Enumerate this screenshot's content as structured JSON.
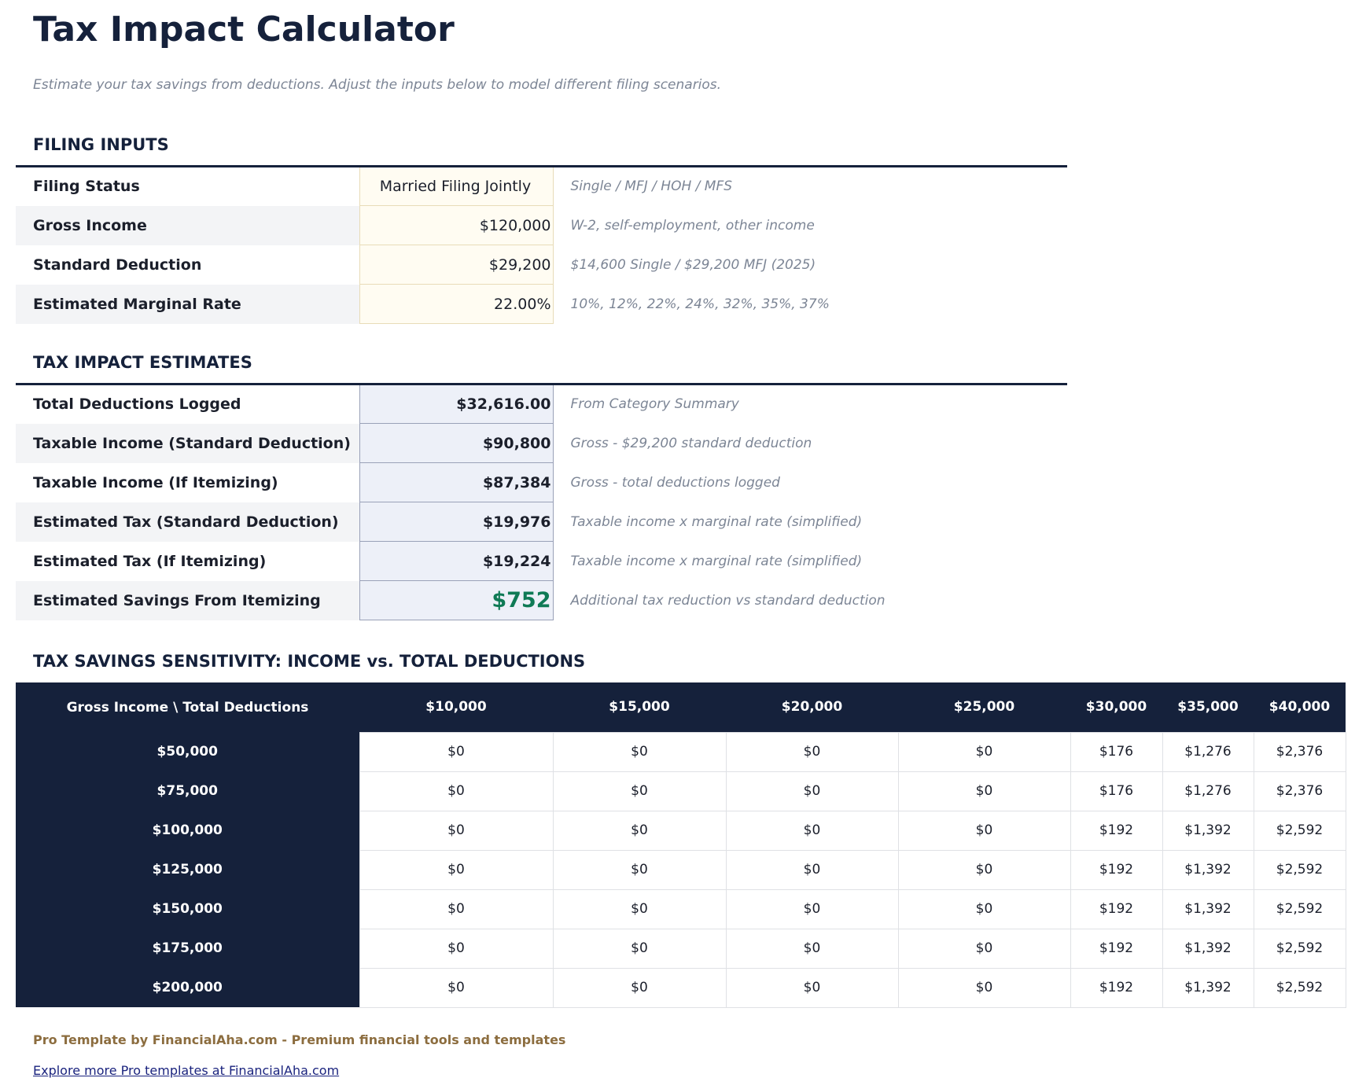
{
  "header": {
    "title": "Tax Impact Calculator",
    "subtitle": "Estimate your tax savings from deductions. Adjust the inputs below to model different filing scenarios."
  },
  "filing_inputs": {
    "title": "FILING INPUTS",
    "rows": [
      [
        "Filing Status",
        "Married Filing Jointly",
        "Single / MFJ / HOH / MFS"
      ],
      [
        "Gross Income",
        "$120,000",
        "W-2, self-employment, other income"
      ],
      [
        "Standard Deduction",
        "$29,200",
        "$14,600 Single / $29,200 MFJ (2025)"
      ],
      [
        "Estimated Marginal Rate",
        "22.00%",
        "10%, 12%, 22%, 24%, 32%, 35%, 37%"
      ]
    ]
  },
  "estimates": {
    "title": "TAX IMPACT ESTIMATES",
    "rows": [
      [
        "Total Deductions Logged",
        "$32,616.00",
        "From Category Summary"
      ],
      [
        "Taxable Income (Standard Deduction)",
        "$90,800",
        "Gross - $29,200 standard deduction"
      ],
      [
        "Taxable Income (If Itemizing)",
        "$87,384",
        "Gross - total deductions logged"
      ],
      [
        "Estimated Tax (Standard Deduction)",
        "$19,976",
        "Taxable income x marginal rate (simplified)"
      ],
      [
        "Estimated Tax (If Itemizing)",
        "$19,224",
        "Taxable income x marginal rate (simplified)"
      ],
      [
        "Estimated Savings From Itemizing",
        "$752",
        "Additional tax reduction vs standard deduction"
      ]
    ]
  },
  "sensitivity": {
    "title": "TAX SAVINGS SENSITIVITY: INCOME vs. TOTAL DEDUCTIONS",
    "header": [
      "Gross Income \\ Total Deductions",
      "$10,000",
      "$15,000",
      "$20,000",
      "$25,000",
      "$30,000",
      "$35,000",
      "$40,000"
    ],
    "rows": [
      [
        "$50,000",
        "$0",
        "$0",
        "$0",
        "$0",
        "$176",
        "$1,276",
        "$2,376"
      ],
      [
        "$75,000",
        "$0",
        "$0",
        "$0",
        "$0",
        "$176",
        "$1,276",
        "$2,376"
      ],
      [
        "$100,000",
        "$0",
        "$0",
        "$0",
        "$0",
        "$192",
        "$1,392",
        "$2,592"
      ],
      [
        "$125,000",
        "$0",
        "$0",
        "$0",
        "$0",
        "$192",
        "$1,392",
        "$2,592"
      ],
      [
        "$150,000",
        "$0",
        "$0",
        "$0",
        "$0",
        "$192",
        "$1,392",
        "$2,592"
      ],
      [
        "$175,000",
        "$0",
        "$0",
        "$0",
        "$0",
        "$192",
        "$1,392",
        "$2,592"
      ],
      [
        "$200,000",
        "$0",
        "$0",
        "$0",
        "$0",
        "$192",
        "$1,392",
        "$2,592"
      ]
    ]
  },
  "footer": {
    "brand": "Pro Template by FinancialAha.com - Premium financial tools and templates",
    "link": "Explore more Pro templates at FinancialAha.com"
  }
}
